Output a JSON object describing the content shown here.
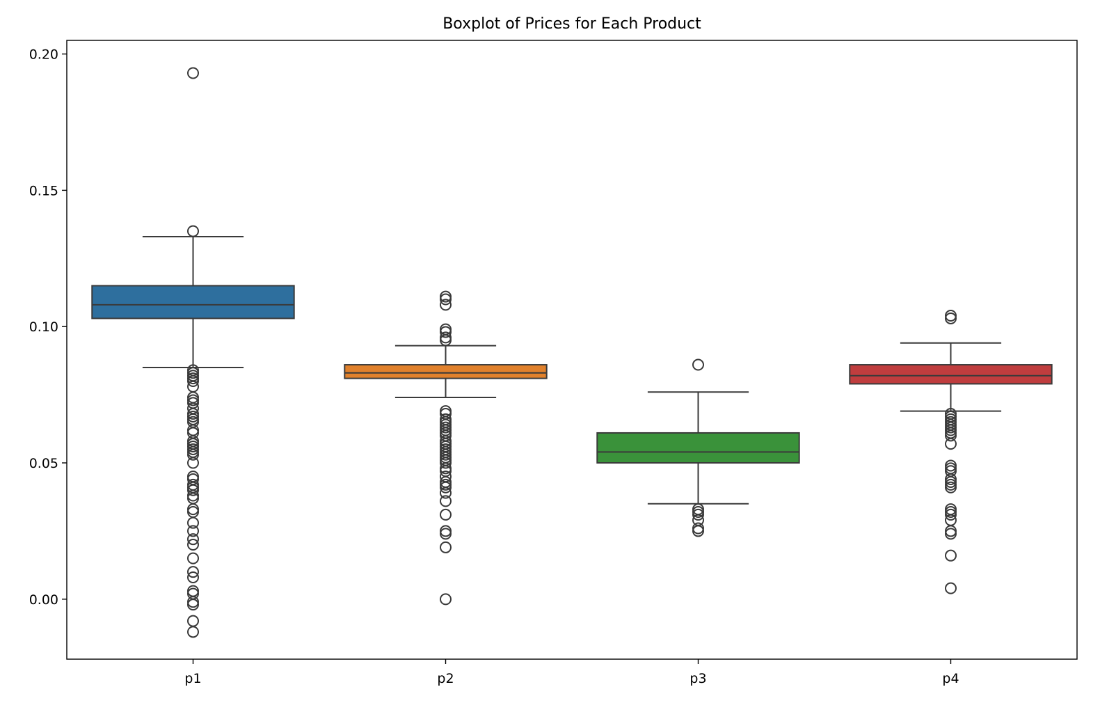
{
  "chart_data": {
    "type": "box",
    "title": "Boxplot of Prices for Each Product",
    "xlabel": "",
    "ylabel": "",
    "ylim": [
      -0.022,
      0.205
    ],
    "yticks": [
      0.0,
      0.05,
      0.1,
      0.15,
      0.2
    ],
    "ytick_labels": [
      "0.00",
      "0.05",
      "0.10",
      "0.15",
      "0.20"
    ],
    "grid": false,
    "categories": [
      "p1",
      "p2",
      "p3",
      "p4"
    ],
    "boxes": [
      {
        "name": "p1",
        "color": "#2e6f9e",
        "whisker_low": 0.085,
        "q1": 0.103,
        "median": 0.108,
        "q3": 0.115,
        "whisker_high": 0.133,
        "outliers": [
          0.193,
          0.135,
          0.084,
          0.083,
          0.082,
          0.081,
          0.08,
          0.078,
          0.074,
          0.073,
          0.072,
          0.07,
          0.068,
          0.067,
          0.066,
          0.065,
          0.062,
          0.061,
          0.058,
          0.057,
          0.056,
          0.055,
          0.054,
          0.053,
          0.05,
          0.045,
          0.044,
          0.042,
          0.041,
          0.04,
          0.038,
          0.037,
          0.033,
          0.032,
          0.028,
          0.025,
          0.022,
          0.02,
          0.015,
          0.01,
          0.008,
          0.003,
          0.002,
          -0.001,
          -0.002,
          -0.008,
          -0.012
        ]
      },
      {
        "name": "p2",
        "color": "#e1812c",
        "whisker_low": 0.074,
        "q1": 0.081,
        "median": 0.083,
        "q3": 0.086,
        "whisker_high": 0.093,
        "outliers": [
          0.111,
          0.11,
          0.108,
          0.099,
          0.098,
          0.096,
          0.095,
          0.069,
          0.068,
          0.066,
          0.065,
          0.064,
          0.063,
          0.062,
          0.061,
          0.06,
          0.058,
          0.057,
          0.056,
          0.055,
          0.054,
          0.053,
          0.052,
          0.051,
          0.05,
          0.048,
          0.047,
          0.045,
          0.043,
          0.042,
          0.041,
          0.039,
          0.036,
          0.031,
          0.025,
          0.024,
          0.019,
          0.0
        ]
      },
      {
        "name": "p3",
        "color": "#3a923a",
        "whisker_low": 0.035,
        "q1": 0.05,
        "median": 0.054,
        "q3": 0.061,
        "whisker_high": 0.076,
        "outliers": [
          0.086,
          0.033,
          0.032,
          0.031,
          0.029,
          0.026,
          0.025
        ]
      },
      {
        "name": "p4",
        "color": "#c03d3e",
        "whisker_low": 0.069,
        "q1": 0.079,
        "median": 0.082,
        "q3": 0.086,
        "whisker_high": 0.094,
        "outliers": [
          0.104,
          0.103,
          0.068,
          0.067,
          0.066,
          0.065,
          0.064,
          0.063,
          0.062,
          0.061,
          0.06,
          0.057,
          0.049,
          0.048,
          0.047,
          0.044,
          0.043,
          0.042,
          0.041,
          0.033,
          0.032,
          0.031,
          0.029,
          0.025,
          0.024,
          0.016,
          0.004
        ]
      }
    ]
  }
}
